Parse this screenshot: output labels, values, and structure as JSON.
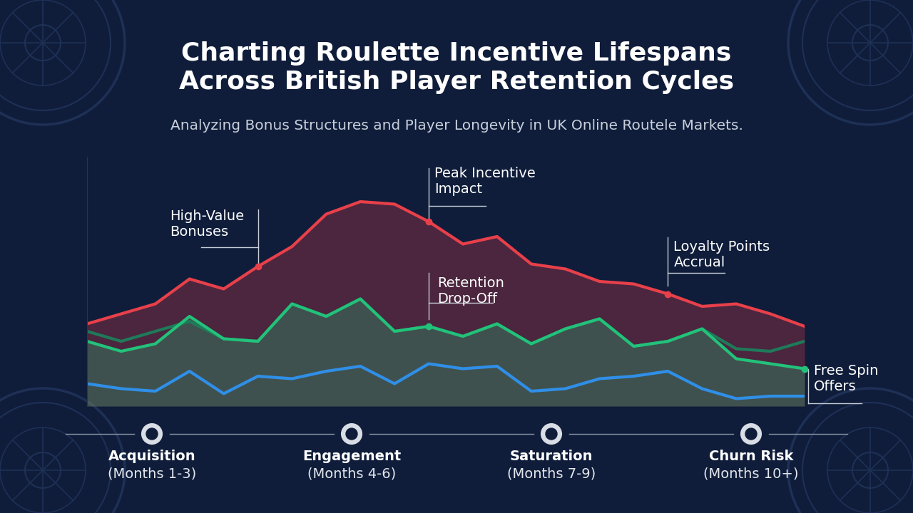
{
  "chart_data": {
    "type": "line",
    "title": "Charting Roulette Incentive Lifespans\nAcross British Player Retention Cycles",
    "subtitle": "Analyzing Bonus Structures and Player Longevity in UK Online Routele Markets.",
    "categories": [
      null,
      null,
      null,
      null,
      null,
      null,
      null,
      null,
      null,
      null,
      null,
      null,
      null,
      null,
      null,
      null,
      null,
      null,
      null,
      null,
      null,
      null
    ],
    "series": [
      {
        "type": "area",
        "color": "#e8404a",
        "values": [
          33,
          37,
          41,
          51,
          47,
          56,
          64,
          77,
          82,
          81,
          74,
          65,
          68,
          57,
          55,
          50,
          49,
          45,
          40,
          41,
          37,
          32
        ]
      },
      {
        "type": "line",
        "color": "#1f7a5a",
        "values": [
          30,
          26,
          30,
          34,
          27,
          26,
          41,
          36,
          43,
          30,
          32,
          28,
          33,
          25,
          31,
          35,
          24,
          26,
          31,
          23,
          22,
          26
        ]
      },
      {
        "type": "area",
        "color": "#22c27a",
        "values": [
          26,
          22,
          25,
          36,
          27,
          26,
          41,
          36,
          43,
          30,
          32,
          28,
          33,
          25,
          31,
          35,
          24,
          26,
          31,
          19,
          17,
          15
        ]
      },
      {
        "type": "line",
        "color": "#2f8fe8",
        "values": [
          9,
          7,
          6,
          14,
          5,
          12,
          11,
          14,
          16,
          9,
          17,
          15,
          16,
          6,
          7,
          11,
          12,
          14,
          7,
          3,
          4,
          4
        ]
      }
    ],
    "annotations": [
      {
        "text": "High-Value\nBonuses",
        "series": 0,
        "index": 5
      },
      {
        "text": "Peak Incentive\nImpact",
        "series": 0,
        "index": 10
      },
      {
        "text": "Retention\nDrop-Off",
        "series": 2,
        "index": 10
      },
      {
        "text": "Loyalty Points\nAccrual",
        "series": 0,
        "index": 17
      },
      {
        "text": "Free Spin\nOffers",
        "series": 2,
        "index": 21
      }
    ],
    "phases": [
      {
        "label": "Acquisition",
        "period": "(Months 1-3)"
      },
      {
        "label": "Engagement",
        "period": "(Months 4-6)"
      },
      {
        "label": "Saturation",
        "period": "(Months 7-9)"
      },
      {
        "label": "Churn Risk",
        "period": "(Months 10+)"
      }
    ],
    "ylim": [
      0,
      100
    ],
    "yticks": [],
    "grid": false,
    "tick_labels": false
  }
}
